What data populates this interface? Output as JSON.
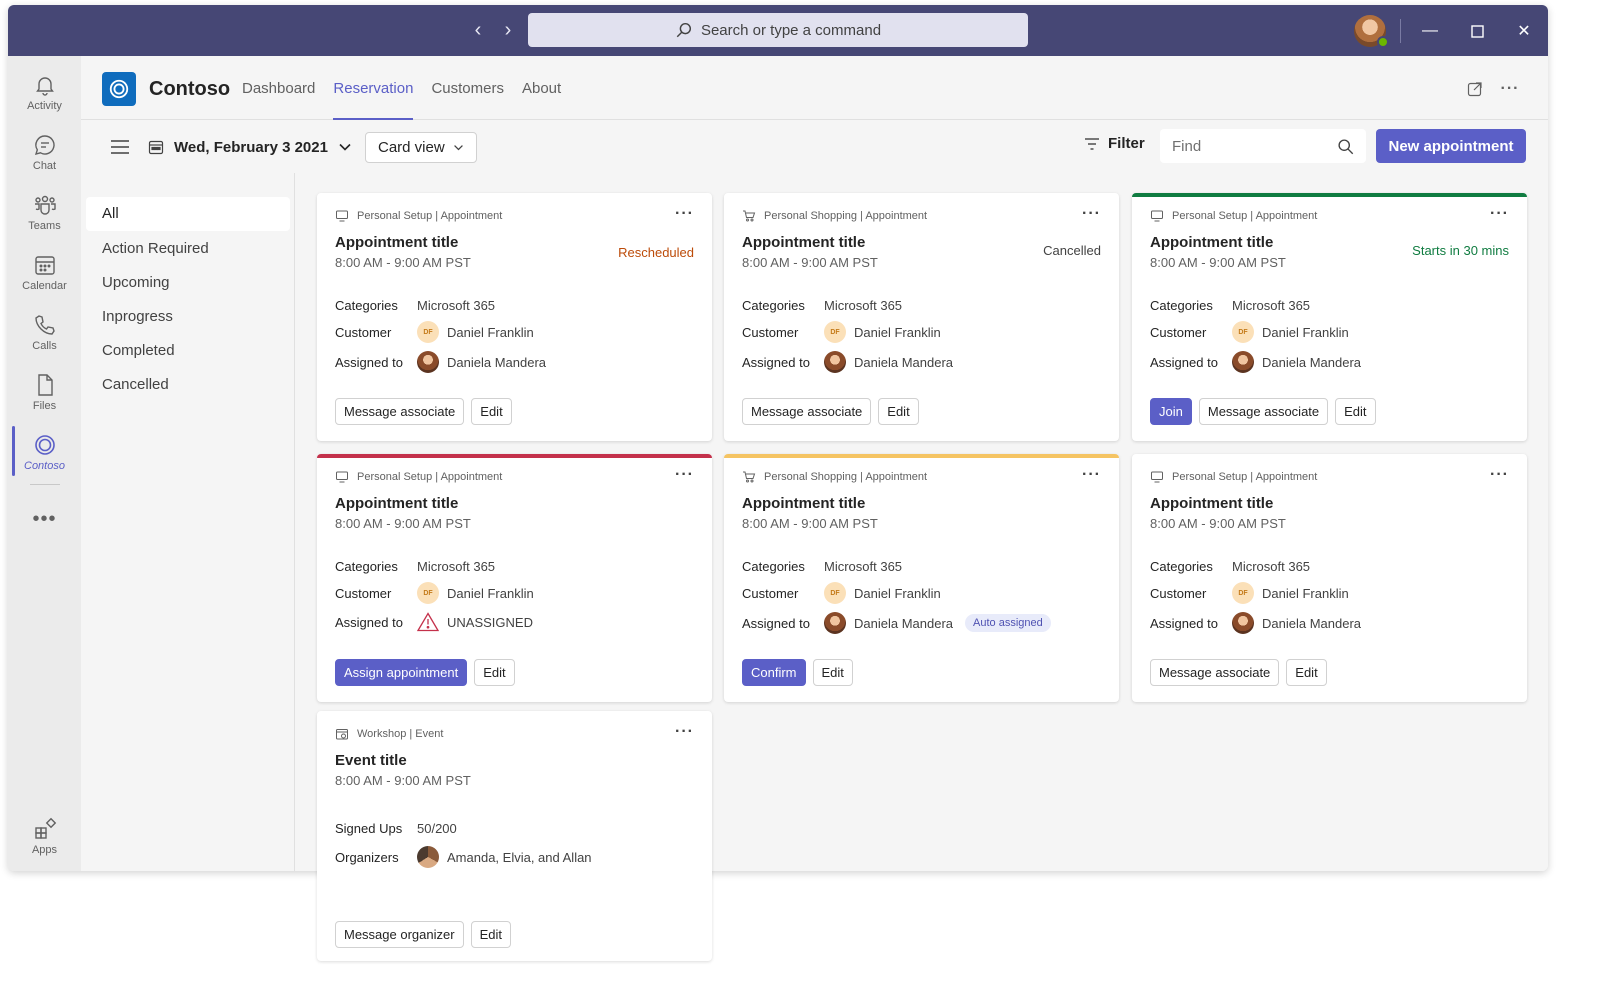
{
  "titlebar": {
    "search_placeholder": "Search or type a command"
  },
  "rail": {
    "items": [
      {
        "label": "Activity",
        "icon": "bell-icon"
      },
      {
        "label": "Chat",
        "icon": "chat-icon"
      },
      {
        "label": "Teams",
        "icon": "teams-icon"
      },
      {
        "label": "Calendar",
        "icon": "calendar-icon"
      },
      {
        "label": "Calls",
        "icon": "phone-icon"
      },
      {
        "label": "Files",
        "icon": "file-icon"
      },
      {
        "label": "Contoso",
        "icon": "contoso-icon"
      }
    ],
    "apps_label": "Apps"
  },
  "app": {
    "name": "Contoso",
    "tabs": [
      "Dashboard",
      "Reservation",
      "Customers",
      "About"
    ],
    "active_tab": "Reservation"
  },
  "toolbar": {
    "date": "Wed, February 3 2021",
    "view": "Card view",
    "filter_label": "Filter",
    "find_placeholder": "Find",
    "new_button": "New appointment"
  },
  "filters": [
    "All",
    "Action Required",
    "Upcoming",
    "Inprogress",
    "Completed",
    "Cancelled"
  ],
  "colors": {
    "brand": "#5b5fc7",
    "titlebar": "#464775",
    "rescheduled": "#bc4b09",
    "starts_soon": "#107c41",
    "accent_green": "#107c41",
    "accent_red": "#c4314b",
    "accent_yellow": "#f5c463"
  },
  "labels": {
    "categories": "Categories",
    "customer": "Customer",
    "assigned_to": "Assigned to",
    "signed_ups": "Signed Ups",
    "organizers": "Organizers"
  },
  "cards": [
    {
      "type": "Personal Setup | Appointment",
      "title": "Appointment title",
      "time": "8:00 AM - 9:00 AM PST",
      "status": "Rescheduled",
      "category": "Microsoft 365",
      "customer_initials": "DF",
      "customer": "Daniel Franklin",
      "assignee": "Daniela Mandera",
      "buttons": [
        "Message associate",
        "Edit"
      ]
    },
    {
      "type": "Personal Shopping | Appointment",
      "title": "Appointment title",
      "time": "8:00 AM - 9:00 AM PST",
      "status": "Cancelled",
      "category": "Microsoft 365",
      "customer_initials": "DF",
      "customer": "Daniel Franklin",
      "assignee": "Daniela Mandera",
      "buttons": [
        "Message associate",
        "Edit"
      ]
    },
    {
      "type": "Personal Setup | Appointment",
      "title": "Appointment title",
      "time": "8:00 AM - 9:00 AM PST",
      "status": "Starts in 30 mins",
      "category": "Microsoft 365",
      "customer_initials": "DF",
      "customer": "Daniel Franklin",
      "assignee": "Daniela Mandera",
      "buttons": [
        "Join",
        "Message associate",
        "Edit"
      ]
    },
    {
      "type": "Personal Setup | Appointment",
      "title": "Appointment title",
      "time": "8:00 AM - 9:00 AM PST",
      "category": "Microsoft 365",
      "customer_initials": "DF",
      "customer": "Daniel Franklin",
      "assignee": "UNASSIGNED",
      "buttons": [
        "Assign appointment",
        "Edit"
      ]
    },
    {
      "type": "Personal Shopping | Appointment",
      "title": "Appointment title",
      "time": "8:00 AM - 9:00 AM PST",
      "category": "Microsoft 365",
      "customer_initials": "DF",
      "customer": "Daniel Franklin",
      "assignee": "Daniela Mandera",
      "assignee_badge": "Auto assigned",
      "buttons": [
        "Confirm",
        "Edit"
      ]
    },
    {
      "type": "Personal Setup | Appointment",
      "title": "Appointment title",
      "time": "8:00 AM - 9:00 AM PST",
      "category": "Microsoft 365",
      "customer_initials": "DF",
      "customer": "Daniel Franklin",
      "assignee": "Daniela Mandera",
      "buttons": [
        "Message associate",
        "Edit"
      ]
    },
    {
      "type": "Workshop | Event",
      "title": "Event title",
      "time": "8:00 AM - 9:00 AM PST",
      "signed_ups": "50/200",
      "organizers": "Amanda, Elvia, and Allan",
      "buttons": [
        "Message organizer",
        "Edit"
      ]
    }
  ]
}
